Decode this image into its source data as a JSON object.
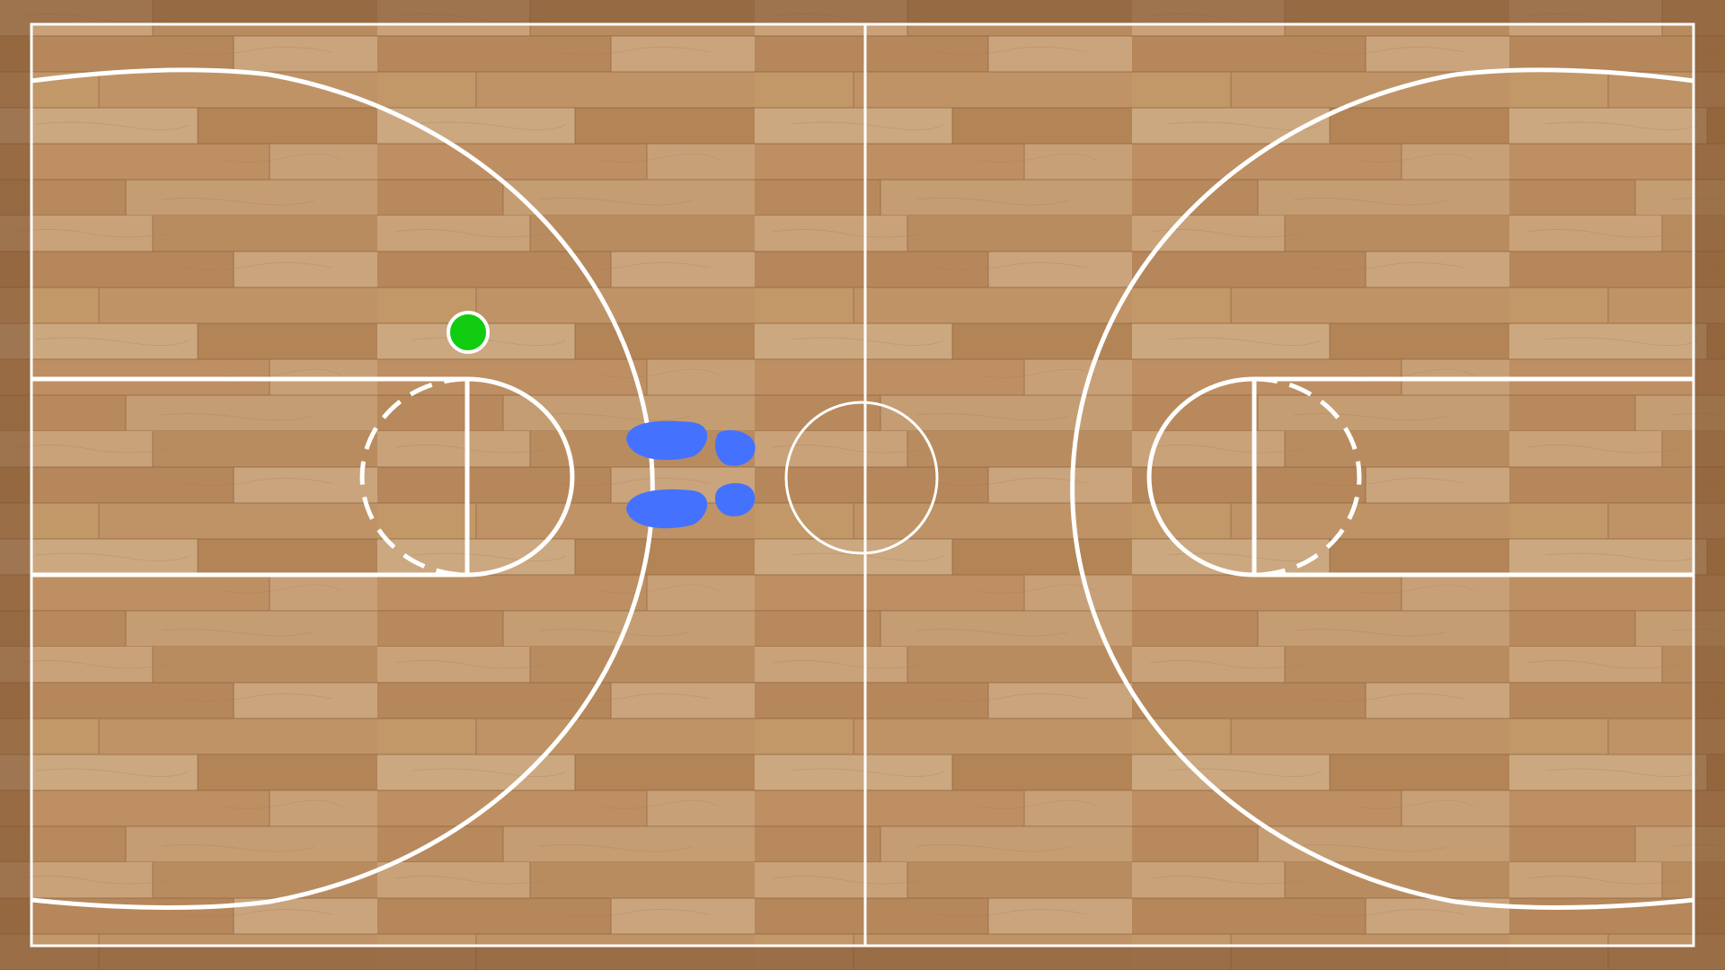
{
  "scene": {
    "type": "basketball-court-top-view",
    "floor": "wooden-parquet",
    "colors": {
      "line": "#ffffff",
      "wood_light": "#c9a27a",
      "wood_mid": "#b8895c",
      "wood_dark": "#9c6f45",
      "border_wood": "#6b4527",
      "marker": "#11cc11",
      "footprints": "#4472ff"
    },
    "markers": [
      {
        "name": "green-dot-marker",
        "color": "#11cc11"
      }
    ],
    "footprints": {
      "icon": "footprints-icon",
      "color": "#4472ff",
      "count": 2
    }
  }
}
